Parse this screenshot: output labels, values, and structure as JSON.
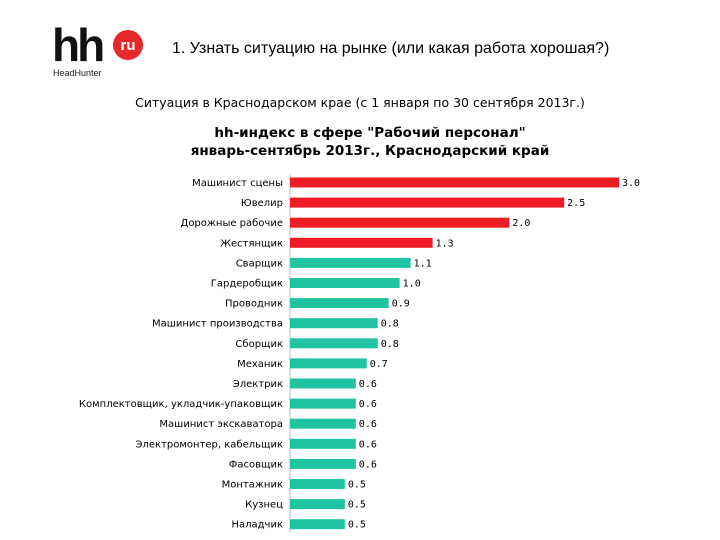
{
  "header": {
    "logo_main": "hh",
    "logo_badge": "ru",
    "logo_sub": "HeadHunter",
    "title": "1. Узнать ситуацию на рынке (или какая работа хорошая?)"
  },
  "subtitle": "Ситуация в Краснодарском крае (с 1 января по 30 сентября 2013г.)",
  "colors": {
    "high": "#ee1c24",
    "normal": "#21c4a0",
    "logo_red": "#e62a2a"
  },
  "chart_data": {
    "type": "bar",
    "orientation": "horizontal",
    "title": "hh-индекс в сфере \"Рабочий персонал\"",
    "title_line2": "январь-сентябрь 2013г., Краснодарский край",
    "xlabel": "",
    "ylabel": "",
    "xlim": [
      0,
      3.0
    ],
    "grid": false,
    "legend": "none",
    "categories": [
      "Машинист сцены",
      "Ювелир",
      "Дорожные рабочие",
      "Жестянщик",
      "Сварщик",
      "Гардеробщик",
      "Проводник",
      "Машинист производства",
      "Сборщик",
      "Механик",
      "Электрик",
      "Комплектовщик, укладчик-упаковщик",
      "Машинист экскаватора",
      "Электромонтер, кабельщик",
      "Фасовщик",
      "Монтажник",
      "Кузнец",
      "Наладчик"
    ],
    "values": [
      3.0,
      2.5,
      2.0,
      1.3,
      1.1,
      1.0,
      0.9,
      0.8,
      0.8,
      0.7,
      0.6,
      0.6,
      0.6,
      0.6,
      0.6,
      0.5,
      0.5,
      0.5
    ],
    "value_labels": [
      "3.0",
      "2.5",
      "2.0",
      "1.3",
      "1.1",
      "1.0",
      "0.9",
      "0.8",
      "0.8",
      "0.7",
      "0.6",
      "0.6",
      "0.6",
      "0.6",
      "0.6",
      "0.5",
      "0.5",
      "0.5"
    ],
    "bar_colors": [
      "high",
      "high",
      "high",
      "high",
      "normal",
      "normal",
      "normal",
      "normal",
      "normal",
      "normal",
      "normal",
      "normal",
      "normal",
      "normal",
      "normal",
      "normal",
      "normal",
      "normal"
    ]
  }
}
